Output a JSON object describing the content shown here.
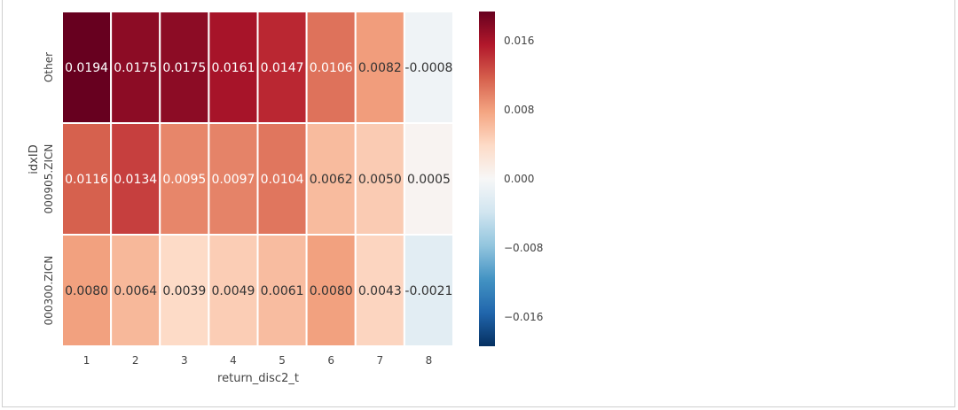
{
  "chart_data": {
    "type": "heatmap",
    "xlabel": "return_disc2_t",
    "ylabel": "idxID",
    "x_categories": [
      "1",
      "2",
      "3",
      "4",
      "5",
      "6",
      "7",
      "8"
    ],
    "y_categories": [
      "Other",
      "000905.ZICN",
      "000300.ZICN"
    ],
    "values": [
      [
        0.0194,
        0.0175,
        0.0175,
        0.0161,
        0.0147,
        0.0106,
        0.0082,
        -0.0008
      ],
      [
        0.0116,
        0.0134,
        0.0095,
        0.0097,
        0.0104,
        0.0062,
        0.005,
        0.0005
      ],
      [
        0.008,
        0.0064,
        0.0039,
        0.0049,
        0.0061,
        0.008,
        0.0043,
        -0.0021
      ]
    ],
    "annotations": [
      [
        "0.0194",
        "0.0175",
        "0.0175",
        "0.0161",
        "0.0147",
        "0.0106",
        "0.0082",
        "-0.0008"
      ],
      [
        "0.0116",
        "0.0134",
        "0.0095",
        "0.0097",
        "0.0104",
        "0.0062",
        "0.0050",
        "0.0005"
      ],
      [
        "0.0080",
        "0.0064",
        "0.0039",
        "0.0049",
        "0.0061",
        "0.0080",
        "0.0043",
        "-0.0021"
      ]
    ],
    "colorbar": {
      "vmin": -0.0194,
      "vmax": 0.0194,
      "ticks": [
        0.016,
        0.008,
        0.0,
        -0.008,
        -0.016
      ],
      "tick_labels": [
        "0.016",
        "0.008",
        "0.000",
        "−0.008",
        "−0.016"
      ],
      "colormap": "RdBu_r"
    }
  }
}
